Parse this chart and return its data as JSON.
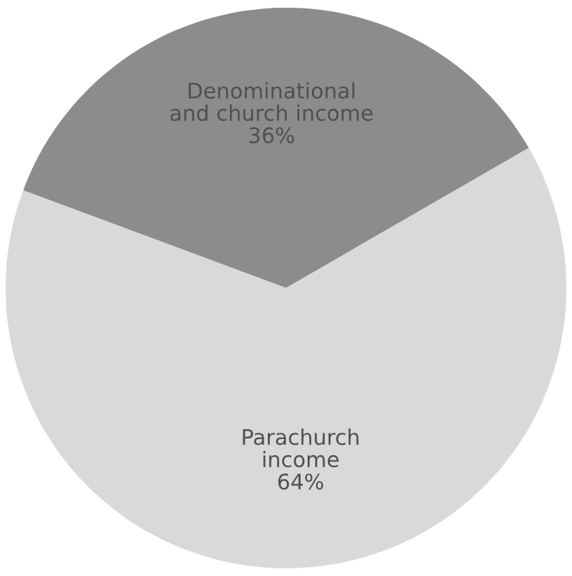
{
  "chart_data": {
    "type": "pie",
    "categories": [
      "Denominational\nand church income",
      "Parachurch\nincome"
    ],
    "values": [
      36,
      64
    ],
    "colors": [
      "#8c8c8c",
      "#d9d9d9"
    ],
    "value_labels": [
      "36%",
      "64%"
    ]
  }
}
